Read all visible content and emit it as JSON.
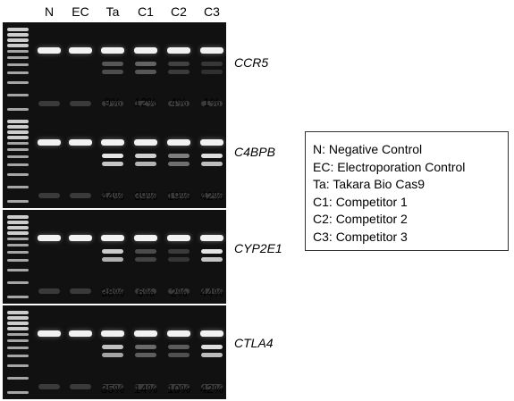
{
  "lanes": [
    "N",
    "EC",
    "Ta",
    "C1",
    "C2",
    "C3"
  ],
  "genes": [
    {
      "name": "CCR5",
      "percentages": [
        "9%",
        "12%",
        "4%",
        "1%"
      ],
      "cleavage": [
        0,
        0,
        0.09,
        0.12,
        0.04,
        0.01
      ]
    },
    {
      "name": "C4BPB",
      "percentages": [
        "44%",
        "39%",
        "19%",
        "42%"
      ],
      "cleavage": [
        0,
        0,
        0.44,
        0.39,
        0.19,
        0.42
      ]
    },
    {
      "name": "CYP2E1",
      "percentages": [
        "38%",
        "6%",
        "2%",
        "44%"
      ],
      "cleavage": [
        0,
        0,
        0.38,
        0.06,
        0.02,
        0.44
      ]
    },
    {
      "name": "CTLA4",
      "percentages": [
        "35%",
        "14%",
        "10%",
        "42%"
      ],
      "cleavage": [
        0,
        0,
        0.35,
        0.14,
        0.1,
        0.42
      ]
    }
  ],
  "legend": [
    {
      "code": "N:",
      "label": "Negative Control"
    },
    {
      "code": "EC:",
      "label": "Electroporation Control"
    },
    {
      "code": "Ta:",
      "label": "Takara Bio Cas9"
    },
    {
      "code": "C1:",
      "label": "Competitor 1"
    },
    {
      "code": "C2:",
      "label": "Competitor 2"
    },
    {
      "code": "C3:",
      "label": "Competitor 3"
    }
  ],
  "colors": {
    "gel": "#111111",
    "band": "#f2f2f2",
    "ladder": "#d8d8d8"
  }
}
